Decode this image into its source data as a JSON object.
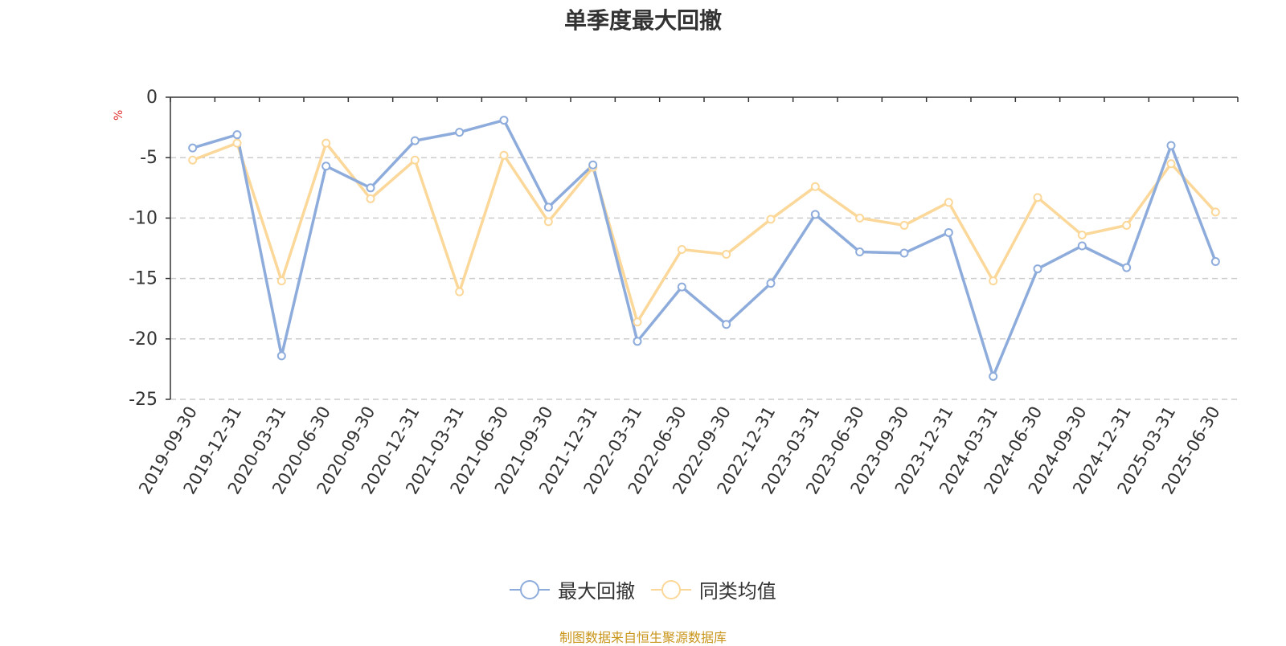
{
  "chart_data": {
    "type": "line",
    "title": "单季度最大回撤",
    "ylabel": "%",
    "ylim": [
      -25,
      0
    ],
    "yticks": [
      0,
      -5,
      -10,
      -15,
      -20,
      -25
    ],
    "grid": true,
    "legend_position": "bottom-center",
    "categories": [
      "2019-09-30",
      "2019-12-31",
      "2020-03-31",
      "2020-06-30",
      "2020-09-30",
      "2020-12-31",
      "2021-03-31",
      "2021-06-30",
      "2021-09-30",
      "2021-12-31",
      "2022-03-31",
      "2022-06-30",
      "2022-09-30",
      "2022-12-31",
      "2023-03-31",
      "2023-06-30",
      "2023-09-30",
      "2023-12-31",
      "2024-03-31",
      "2024-06-30",
      "2024-09-30",
      "2024-12-31",
      "2025-03-31",
      "2025-06-30"
    ],
    "series": [
      {
        "name": "最大回撤",
        "color": "#8eacdb",
        "values": [
          -4.2,
          -3.1,
          -21.4,
          -5.7,
          -7.5,
          -3.6,
          -2.9,
          -1.9,
          -9.1,
          -5.6,
          -20.2,
          -15.7,
          -18.8,
          -15.4,
          -9.7,
          -12.8,
          -12.9,
          -11.2,
          -23.1,
          -14.2,
          -12.3,
          -14.1,
          -4.0,
          -13.6
        ]
      },
      {
        "name": "同类均值",
        "color": "#fbd899",
        "values": [
          -5.2,
          -3.8,
          -15.2,
          -3.8,
          -8.4,
          -5.2,
          -16.1,
          -4.8,
          -10.3,
          -5.8,
          -18.6,
          -12.6,
          -13.0,
          -10.1,
          -7.4,
          -10.0,
          -10.6,
          -8.7,
          -15.2,
          -8.3,
          -11.4,
          -10.6,
          -5.5,
          -9.5
        ]
      }
    ]
  },
  "footer": {
    "source": "制图数据来自恒生聚源数据库"
  }
}
